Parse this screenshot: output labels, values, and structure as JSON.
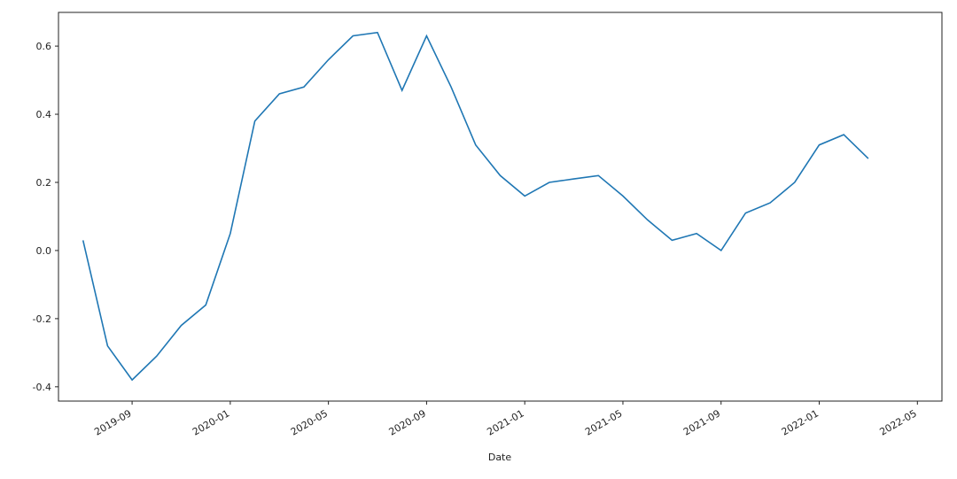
{
  "chart_data": {
    "type": "line",
    "xlabel": "Date",
    "x": [
      "2019-07",
      "2019-08",
      "2019-09",
      "2019-10",
      "2019-11",
      "2019-12",
      "2020-01",
      "2020-02",
      "2020-03",
      "2020-04",
      "2020-05",
      "2020-06",
      "2020-07",
      "2020-08",
      "2020-09",
      "2020-10",
      "2020-11",
      "2020-12",
      "2021-01",
      "2021-02",
      "2021-03",
      "2021-04",
      "2021-05",
      "2021-06",
      "2021-07",
      "2021-08",
      "2021-09",
      "2021-10",
      "2021-11",
      "2021-12",
      "2022-01",
      "2022-02",
      "2022-03"
    ],
    "series": [
      {
        "color": "#1f77b4",
        "values": [
          0.03,
          -0.28,
          -0.38,
          -0.31,
          -0.22,
          -0.16,
          0.05,
          0.38,
          0.46,
          0.48,
          0.56,
          0.63,
          0.64,
          0.47,
          0.63,
          0.48,
          0.31,
          0.22,
          0.16,
          0.2,
          0.21,
          0.22,
          0.16,
          0.09,
          0.03,
          0.05,
          0.0,
          0.11,
          0.14,
          0.2,
          0.31,
          0.34,
          0.27
        ]
      }
    ],
    "xlim": [
      "2019-06",
      "2022-06"
    ],
    "xticks": [
      "2019-09",
      "2020-01",
      "2020-05",
      "2020-09",
      "2021-01",
      "2021-05",
      "2021-09",
      "2022-01",
      "2022-05"
    ],
    "ylim": [
      -0.442,
      0.699
    ],
    "yticks": [
      -0.4,
      -0.2,
      {
        "value": 0,
        "label": "0.0"
      },
      0.2,
      0.4,
      0.6
    ],
    "grid": false
  }
}
